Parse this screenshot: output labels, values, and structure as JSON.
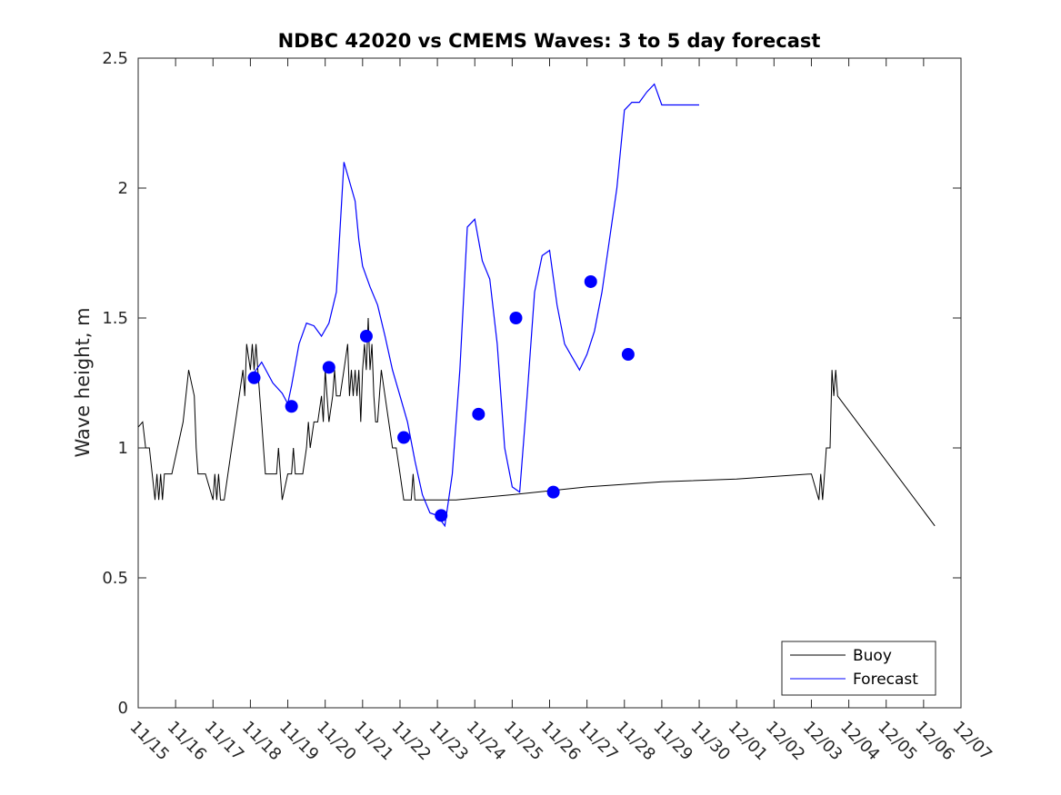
{
  "chart_data": {
    "type": "line",
    "title": "NDBC 42020 vs CMEMS Waves: 3 to 5 day forecast",
    "xlabel": "",
    "ylabel": "Wave height, m",
    "x_unit": "days since 11/15",
    "xlim": [
      0,
      22
    ],
    "ylim": [
      0,
      2.5
    ],
    "x_tick_values": [
      0,
      1,
      2,
      3,
      4,
      5,
      6,
      7,
      8,
      9,
      10,
      11,
      12,
      13,
      14,
      15,
      16,
      17,
      18,
      19,
      20,
      21,
      22
    ],
    "x_tick_labels": [
      "11/15",
      "11/16",
      "11/17",
      "11/18",
      "11/19",
      "11/20",
      "11/21",
      "11/22",
      "11/23",
      "11/24",
      "11/25",
      "11/26",
      "11/27",
      "11/28",
      "11/29",
      "11/30",
      "12/01",
      "12/02",
      "12/03",
      "12/04",
      "12/05",
      "12/06",
      "12/07"
    ],
    "y_tick_values": [
      0,
      0.5,
      1,
      1.5,
      2,
      2.5
    ],
    "y_tick_labels": [
      "0",
      "0.5",
      "1",
      "1.5",
      "2",
      "2.5"
    ],
    "legend": {
      "position": "bottom-right",
      "entries": [
        {
          "label": "Buoy",
          "color": "#000000"
        },
        {
          "label": "Forecast",
          "color": "#0000ff"
        }
      ]
    },
    "series": [
      {
        "name": "Buoy",
        "color": "#000000",
        "x": [
          0,
          0.12,
          0.2,
          0.3,
          0.45,
          0.5,
          0.55,
          0.6,
          0.65,
          0.7,
          0.75,
          0.8,
          0.9,
          1.2,
          1.35,
          1.5,
          1.55,
          1.6,
          1.65,
          1.7,
          1.8,
          2.0,
          2.05,
          2.1,
          2.15,
          2.2,
          2.3,
          2.4,
          2.5,
          2.6,
          2.7,
          2.8,
          2.85,
          2.9,
          3.0,
          3.05,
          3.1,
          3.15,
          3.2,
          3.25,
          3.3,
          3.35,
          3.4,
          3.45,
          3.5,
          3.6,
          3.7,
          3.75,
          3.8,
          3.85,
          4.0,
          4.1,
          4.15,
          4.2,
          4.3,
          4.4,
          4.5,
          4.55,
          4.6,
          4.7,
          4.8,
          4.9,
          4.95,
          5.0,
          5.05,
          5.1,
          5.2,
          5.25,
          5.3,
          5.4,
          5.5,
          5.6,
          5.65,
          5.7,
          5.75,
          5.8,
          5.85,
          5.9,
          5.95,
          6.0,
          6.05,
          6.1,
          6.15,
          6.2,
          6.25,
          6.3,
          6.35,
          6.4,
          6.45,
          6.5,
          6.6,
          6.7,
          6.8,
          6.9,
          7.0,
          7.1,
          7.2,
          7.3,
          7.35,
          7.4,
          7.5,
          7.6,
          7.7,
          7.8,
          7.9,
          8.5,
          10,
          12,
          14,
          16,
          18,
          18.2,
          18.25,
          18.3,
          18.35,
          18.4,
          18.5,
          18.55,
          18.6,
          18.65,
          18.7,
          21.3
        ],
        "y": [
          1.08,
          1.1,
          1.0,
          1.0,
          0.8,
          0.9,
          0.8,
          0.9,
          0.8,
          0.9,
          0.9,
          0.9,
          0.9,
          1.1,
          1.3,
          1.2,
          1.0,
          0.9,
          0.9,
          0.9,
          0.9,
          0.8,
          0.9,
          0.8,
          0.9,
          0.8,
          0.8,
          0.9,
          1.0,
          1.1,
          1.2,
          1.3,
          1.2,
          1.4,
          1.3,
          1.4,
          1.3,
          1.4,
          1.3,
          1.2,
          1.1,
          1.0,
          0.9,
          0.9,
          0.9,
          0.9,
          0.9,
          1.0,
          0.9,
          0.8,
          0.9,
          0.9,
          1.0,
          0.9,
          0.9,
          0.9,
          1.0,
          1.1,
          1.0,
          1.1,
          1.1,
          1.2,
          1.1,
          1.3,
          1.2,
          1.1,
          1.2,
          1.3,
          1.2,
          1.2,
          1.3,
          1.4,
          1.2,
          1.3,
          1.2,
          1.3,
          1.2,
          1.3,
          1.1,
          1.3,
          1.4,
          1.3,
          1.5,
          1.3,
          1.4,
          1.2,
          1.1,
          1.1,
          1.2,
          1.3,
          1.2,
          1.1,
          1.0,
          1.0,
          0.9,
          0.8,
          0.8,
          0.8,
          0.9,
          0.8,
          0.8,
          0.8,
          0.8,
          0.8,
          0.8,
          0.8,
          0.82,
          0.85,
          0.87,
          0.88,
          0.9,
          0.8,
          0.9,
          0.8,
          0.9,
          1.0,
          1.0,
          1.3,
          1.2,
          1.3,
          1.2,
          0.7
        ]
      },
      {
        "name": "Forecast",
        "color": "#0000ff",
        "x": [
          3.0,
          3.3,
          3.6,
          3.85,
          4.0,
          4.1,
          4.3,
          4.5,
          4.7,
          4.9,
          5.1,
          5.3,
          5.5,
          5.7,
          5.8,
          5.9,
          6.0,
          6.2,
          6.4,
          6.6,
          6.8,
          7.0,
          7.2,
          7.4,
          7.6,
          7.8,
          8.0,
          8.2,
          8.4,
          8.6,
          8.8,
          9.0,
          9.2,
          9.4,
          9.6,
          9.8,
          10.0,
          10.2,
          10.4,
          10.6,
          10.8,
          11.0,
          11.2,
          11.4,
          11.6,
          11.8,
          12.0,
          12.2,
          12.4,
          12.6,
          12.8,
          13.0,
          13.2,
          13.4,
          13.6,
          13.8,
          14.0,
          14.2,
          14.4,
          14.6,
          14.8,
          15.0
        ],
        "y": [
          1.27,
          1.33,
          1.25,
          1.21,
          1.17,
          1.24,
          1.4,
          1.48,
          1.47,
          1.43,
          1.48,
          1.6,
          2.1,
          2.0,
          1.95,
          1.8,
          1.7,
          1.62,
          1.55,
          1.43,
          1.3,
          1.2,
          1.1,
          0.95,
          0.82,
          0.75,
          0.74,
          0.7,
          0.9,
          1.3,
          1.85,
          1.88,
          1.72,
          1.65,
          1.4,
          1.0,
          0.85,
          0.83,
          1.2,
          1.6,
          1.74,
          1.76,
          1.55,
          1.4,
          1.35,
          1.3,
          1.36,
          1.45,
          1.6,
          1.8,
          2.0,
          2.3,
          2.33,
          2.33,
          2.37,
          2.4,
          2.32,
          2.32,
          2.32,
          2.32,
          2.32,
          2.32
        ]
      },
      {
        "name": "Forecast markers",
        "color": "#0000ff",
        "x": [
          3.1,
          4.1,
          5.1,
          6.1,
          7.1,
          8.1,
          9.1,
          10.1,
          11.1,
          12.1,
          13.1
        ],
        "y": [
          1.27,
          1.16,
          1.31,
          1.43,
          1.04,
          0.74,
          1.13,
          1.5,
          0.83,
          1.64,
          1.36
        ]
      }
    ]
  }
}
